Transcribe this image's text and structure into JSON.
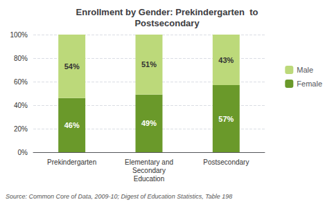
{
  "chart_data": {
    "type": "bar",
    "title": "Enrollment by Gender: Prekindergarten  to\nPostsecondary",
    "categories": [
      "Prekindergarten",
      "Elementary and\nSecondary\nEducation",
      "Postsecondary"
    ],
    "series": [
      {
        "name": "Female",
        "color": "#6a992a",
        "values": [
          46,
          49,
          57
        ],
        "value_labels": [
          "46%",
          "49%",
          "57%"
        ]
      },
      {
        "name": "Male",
        "color": "#bcd97a",
        "values": [
          54,
          51,
          43
        ],
        "value_labels": [
          "54%",
          "51%",
          "43%"
        ]
      }
    ],
    "stacked": true,
    "data_labels": true,
    "ylim": [
      0,
      100
    ],
    "yticks": [
      {
        "value": 0,
        "label": "0%"
      },
      {
        "value": 20,
        "label": "20%"
      },
      {
        "value": 40,
        "label": "40%"
      },
      {
        "value": 60,
        "label": "60%"
      },
      {
        "value": 80,
        "label": "80%"
      },
      {
        "value": 100,
        "label": "100%"
      }
    ],
    "grid": true,
    "legend": "right",
    "annotations": [
      "Source: Common Core of Data, 2009-10; Digest of Education Statistics, Table 198"
    ]
  }
}
